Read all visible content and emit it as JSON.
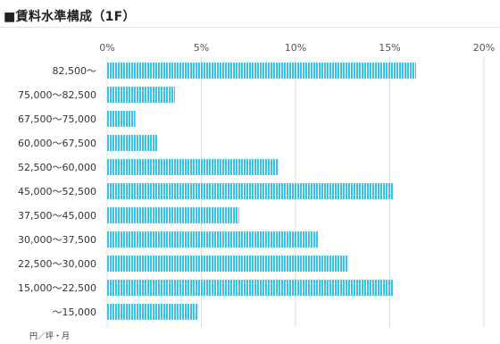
{
  "title": "■賃料水準構成（1F）",
  "colors": {
    "bar": "#33c6e6",
    "grid": "#dddddd",
    "rule": "#e4e4e4"
  },
  "chart_data": {
    "type": "bar",
    "orientation": "horizontal",
    "title": "■賃料水準構成（1F）",
    "unit_label": "円／坪・月",
    "categories": [
      "82,500～",
      "75,000～82,500",
      "67,500～75,000",
      "60,000～67,500",
      "52,500～60,000",
      "45,000～52,500",
      "37,500～45,000",
      "30,000～37,500",
      "22,500～30,000",
      "15,000～22,500",
      "～15,000"
    ],
    "values": [
      16.4,
      3.6,
      1.5,
      2.7,
      9.1,
      15.2,
      7.0,
      11.2,
      12.8,
      15.2,
      4.8
    ],
    "xlim": [
      0,
      20
    ],
    "x_ticks": [
      0,
      5,
      10,
      15,
      20
    ],
    "x_tick_labels": [
      "0%",
      "5%",
      "10%",
      "15%",
      "20%"
    ],
    "grid": true,
    "axis_position": "top"
  }
}
